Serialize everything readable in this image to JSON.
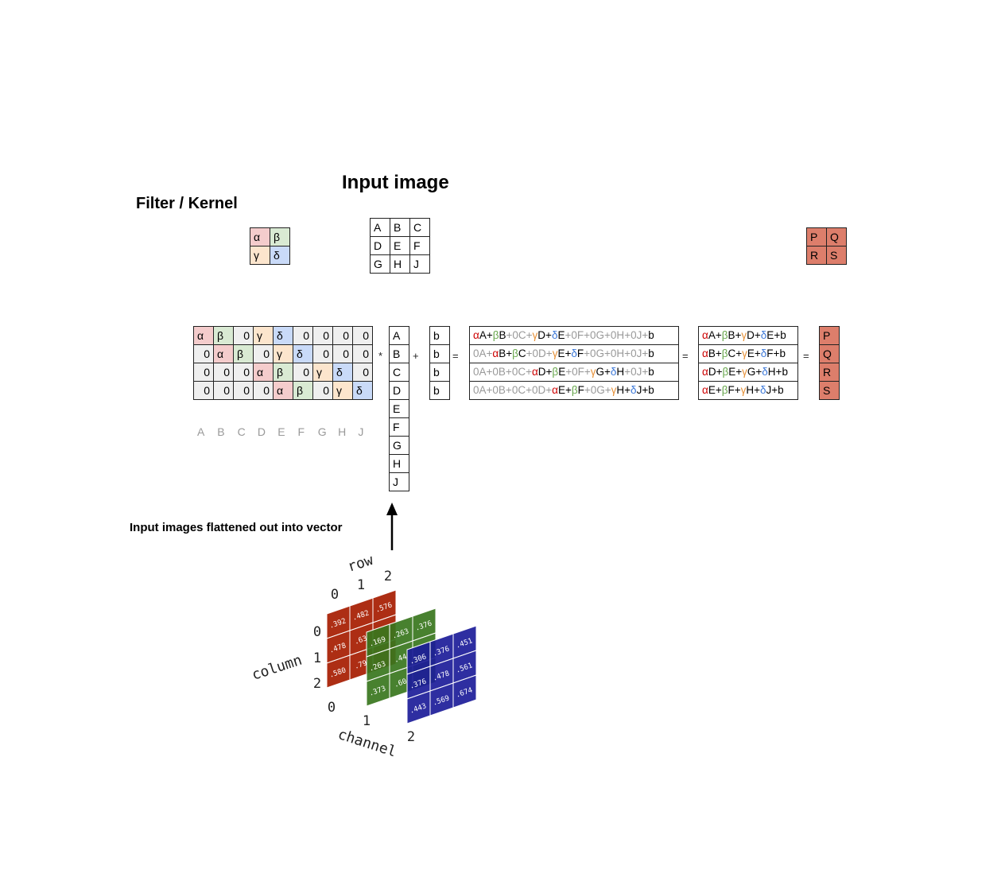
{
  "titles": {
    "filter": "Filter / Kernel",
    "input": "Input image",
    "flatten_label": "Input images flattened out into vector"
  },
  "colors": {
    "alpha": "#f4cccc",
    "beta": "#d9ead3",
    "gamma": "#fce5cd",
    "delta": "#c9daf8",
    "zero": "#efefef",
    "output": "#dd7e6b",
    "term_alpha": "#cc0000",
    "term_beta": "#6aa84f",
    "term_gamma": "#e69138",
    "term_delta": "#3c78d8",
    "term_zero": "#999999",
    "red_channel": "#a61c00",
    "green_channel": "#38761d",
    "blue_channel": "#1c1c99"
  },
  "kernel": [
    [
      "α",
      "β"
    ],
    [
      "γ",
      "δ"
    ]
  ],
  "input_image": [
    [
      "A",
      "B",
      "C"
    ],
    [
      "D",
      "E",
      "F"
    ],
    [
      "G",
      "H",
      "J"
    ]
  ],
  "output_image": [
    [
      "P",
      "Q"
    ],
    [
      "R",
      "S"
    ]
  ],
  "weight_matrix": [
    [
      "α",
      "β",
      "0",
      "γ",
      "δ",
      "0",
      "0",
      "0",
      "0"
    ],
    [
      "0",
      "α",
      "β",
      "0",
      "γ",
      "δ",
      "0",
      "0",
      "0"
    ],
    [
      "0",
      "0",
      "0",
      "α",
      "β",
      "0",
      "γ",
      "δ",
      "0"
    ],
    [
      "0",
      "0",
      "0",
      "0",
      "α",
      "β",
      "0",
      "γ",
      "δ"
    ]
  ],
  "weight_column_headers": [
    "A",
    "B",
    "C",
    "D",
    "E",
    "F",
    "G",
    "H",
    "J"
  ],
  "flat_vector": [
    "A",
    "B",
    "C",
    "D",
    "E",
    "F",
    "G",
    "H",
    "J"
  ],
  "bias_vector": [
    "b",
    "b",
    "b",
    "b"
  ],
  "operators": {
    "times": "*",
    "plus": "+",
    "eq1": "=",
    "eq2": "=",
    "eq3": "="
  },
  "expanded": [
    "αA+βB+0C+γD+δE+0F+0G+0H+0J+b",
    "0A+αB+βC+0D+γE+δF+0G+0H+0J+b",
    "0A+0B+0C+αD+βE+0F+γG+δH+0J+b",
    "0A+0B+0C+0D+αE+βF+0G+γH+δJ+b"
  ],
  "simplified": [
    "αA+βB+γD+δE+b",
    "αB+βC+γE+δF+b",
    "αD+βE+γG+δH+b",
    "αE+βF+γH+δJ+b"
  ],
  "output_vector": [
    "P",
    "Q",
    "R",
    "S"
  ],
  "tensor": {
    "axis_row": "row",
    "axis_column": "column",
    "axis_channel": "channel",
    "row_ticks": [
      "0",
      "1",
      "2"
    ],
    "column_ticks": [
      "0",
      "1",
      "2"
    ],
    "channel_ticks": [
      "0",
      "1",
      "2"
    ],
    "red": [
      [
        ".392",
        ".482",
        ".576"
      ],
      [
        ".478",
        ".63",
        ""
      ],
      [
        ".580",
        ".79",
        ""
      ]
    ],
    "green": [
      [
        ".169",
        ".263",
        ".376"
      ],
      [
        ".263",
        ".44",
        ""
      ],
      [
        ".373",
        ".60",
        ""
      ]
    ],
    "blue": [
      [
        ".306",
        ".376",
        ".451"
      ],
      [
        ".376",
        ".478",
        ".561"
      ],
      [
        ".443",
        ".569",
        ".674"
      ]
    ]
  }
}
